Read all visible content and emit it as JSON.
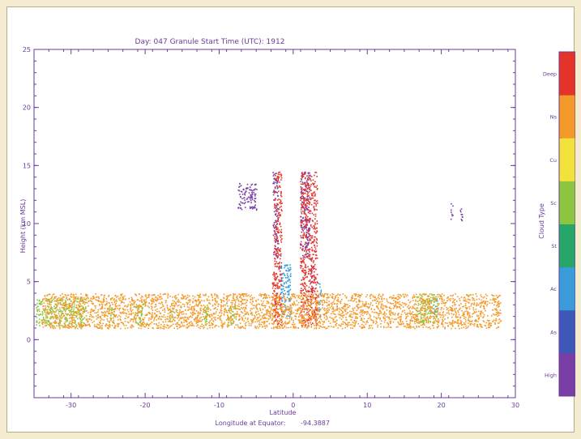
{
  "chart_data": {
    "type": "scatter",
    "title": "Day: 047 Granule Start Time (UTC): 1912",
    "xlabel": "Latitude",
    "subxlabel_label": "Longitude at Equator:",
    "subxlabel_value": "-94.3887",
    "ylabel": "Height (km MSL)",
    "xlim": [
      -35,
      30
    ],
    "ylim": [
      -5,
      25
    ],
    "xticks": [
      -30,
      -20,
      -10,
      0,
      10,
      20,
      30
    ],
    "xtick_labels": [
      "-30",
      "-20",
      "-10",
      "0",
      "10",
      "20",
      "30"
    ],
    "yticks": [
      0,
      5,
      10,
      15,
      20,
      25
    ],
    "ytick_labels": [
      "0",
      "5",
      "10",
      "15",
      "20",
      "25"
    ],
    "grid": false,
    "colorbar": {
      "label": "Cloud Type",
      "position": "right",
      "classes": [
        {
          "name": "High",
          "color": "#7a3fa4"
        },
        {
          "name": "As",
          "color": "#3e58b8"
        },
        {
          "name": "Ac",
          "color": "#3a9cd8"
        },
        {
          "name": "St",
          "color": "#27a66a"
        },
        {
          "name": "Sc",
          "color": "#8cc63e"
        },
        {
          "name": "Cu",
          "color": "#f4e23c"
        },
        {
          "name": "Ns",
          "color": "#f39a2a"
        },
        {
          "name": "Deep",
          "color": "#e4342a"
        }
      ]
    },
    "features": [
      {
        "type": "High",
        "lat": [
          -7.5,
          -5.0
        ],
        "height": [
          11.2,
          13.5
        ]
      },
      {
        "type": "High",
        "lat": [
          -2.8,
          -2.1
        ],
        "height": [
          7.0,
          14.5
        ]
      },
      {
        "type": "High",
        "lat": [
          0.9,
          2.2
        ],
        "height": [
          7.0,
          14.5
        ]
      },
      {
        "type": "High",
        "lat": [
          2.3,
          2.6
        ],
        "height": [
          3.0,
          6.5
        ]
      },
      {
        "type": "High",
        "lat": [
          21.2,
          21.5
        ],
        "height": [
          10.3,
          11.8
        ]
      },
      {
        "type": "High",
        "lat": [
          22.5,
          22.8
        ],
        "height": [
          10.0,
          11.8
        ]
      },
      {
        "type": "Deep",
        "lat": [
          -2.6,
          -1.6
        ],
        "height": [
          1.2,
          14.5
        ]
      },
      {
        "type": "Deep",
        "lat": [
          0.9,
          3.2
        ],
        "height": [
          1.2,
          14.5
        ]
      },
      {
        "type": "Deep",
        "lat": [
          -2.9,
          -2.2
        ],
        "height": [
          2.0,
          6.0
        ]
      },
      {
        "type": "Ac",
        "lat": [
          -1.8,
          -0.4
        ],
        "height": [
          2.0,
          6.5
        ]
      },
      {
        "type": "Ac",
        "lat": [
          3.3,
          3.7
        ],
        "height": [
          2.0,
          5.0
        ]
      },
      {
        "type": "Ac",
        "lat": [
          18.8,
          19.5
        ],
        "height": [
          2.2,
          3.6
        ]
      },
      {
        "type": "Sc",
        "lat": [
          -34.8,
          -28.0
        ],
        "height": [
          1.2,
          3.6
        ]
      },
      {
        "type": "Sc",
        "lat": [
          -25.0,
          -24.2
        ],
        "height": [
          1.5,
          2.8
        ]
      },
      {
        "type": "Sc",
        "lat": [
          -21.5,
          -20.2
        ],
        "height": [
          1.3,
          3.2
        ]
      },
      {
        "type": "Sc",
        "lat": [
          -16.8,
          -16.2
        ],
        "height": [
          1.5,
          2.8
        ]
      },
      {
        "type": "Sc",
        "lat": [
          -12.2,
          -11.5
        ],
        "height": [
          1.2,
          3.0
        ]
      },
      {
        "type": "Sc",
        "lat": [
          -9.0,
          -7.8
        ],
        "height": [
          1.2,
          3.0
        ]
      },
      {
        "type": "Sc",
        "lat": [
          16.5,
          19.5
        ],
        "height": [
          1.5,
          4.0
        ]
      },
      {
        "type": "Ns",
        "lat": [
          -34.0,
          28.0
        ],
        "height": [
          1.0,
          4.0
        ]
      }
    ]
  }
}
